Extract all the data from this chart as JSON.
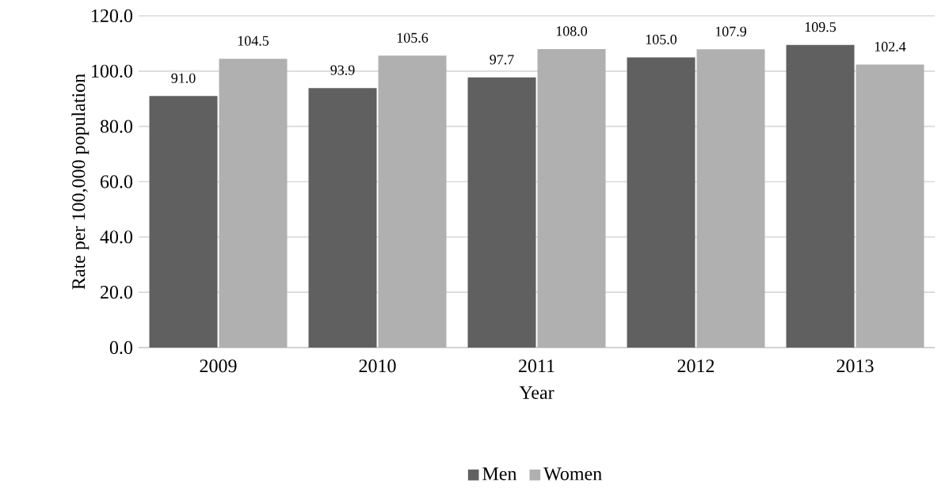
{
  "chart_data": {
    "type": "bar",
    "xlabel": "Year",
    "ylabel": "Rate per 100,000 population",
    "categories": [
      "2009",
      "2010",
      "2011",
      "2012",
      "2013"
    ],
    "series": [
      {
        "name": "Men",
        "color": "#606060",
        "values": [
          91.0,
          93.9,
          97.7,
          105.0,
          109.5
        ],
        "value_labels": [
          "91.0",
          "93.9",
          "97.7",
          "105.0",
          "109.5"
        ]
      },
      {
        "name": "Women",
        "color": "#b0b0b0",
        "values": [
          104.5,
          105.6,
          108.0,
          107.9,
          102.4
        ],
        "value_labels": [
          "104.5",
          "105.6",
          "108.0",
          "107.9",
          "102.4"
        ]
      }
    ],
    "ylim": [
      0,
      120
    ],
    "yticks": [
      {
        "value": 0,
        "label": "0.0"
      },
      {
        "value": 20,
        "label": "20.0"
      },
      {
        "value": 40,
        "label": "40.0"
      },
      {
        "value": 60,
        "label": "60.0"
      },
      {
        "value": 80,
        "label": "80.0"
      },
      {
        "value": 100,
        "label": "100.0"
      },
      {
        "value": 120,
        "label": "120.0"
      }
    ],
    "grid": "y",
    "legend": "bottom"
  }
}
